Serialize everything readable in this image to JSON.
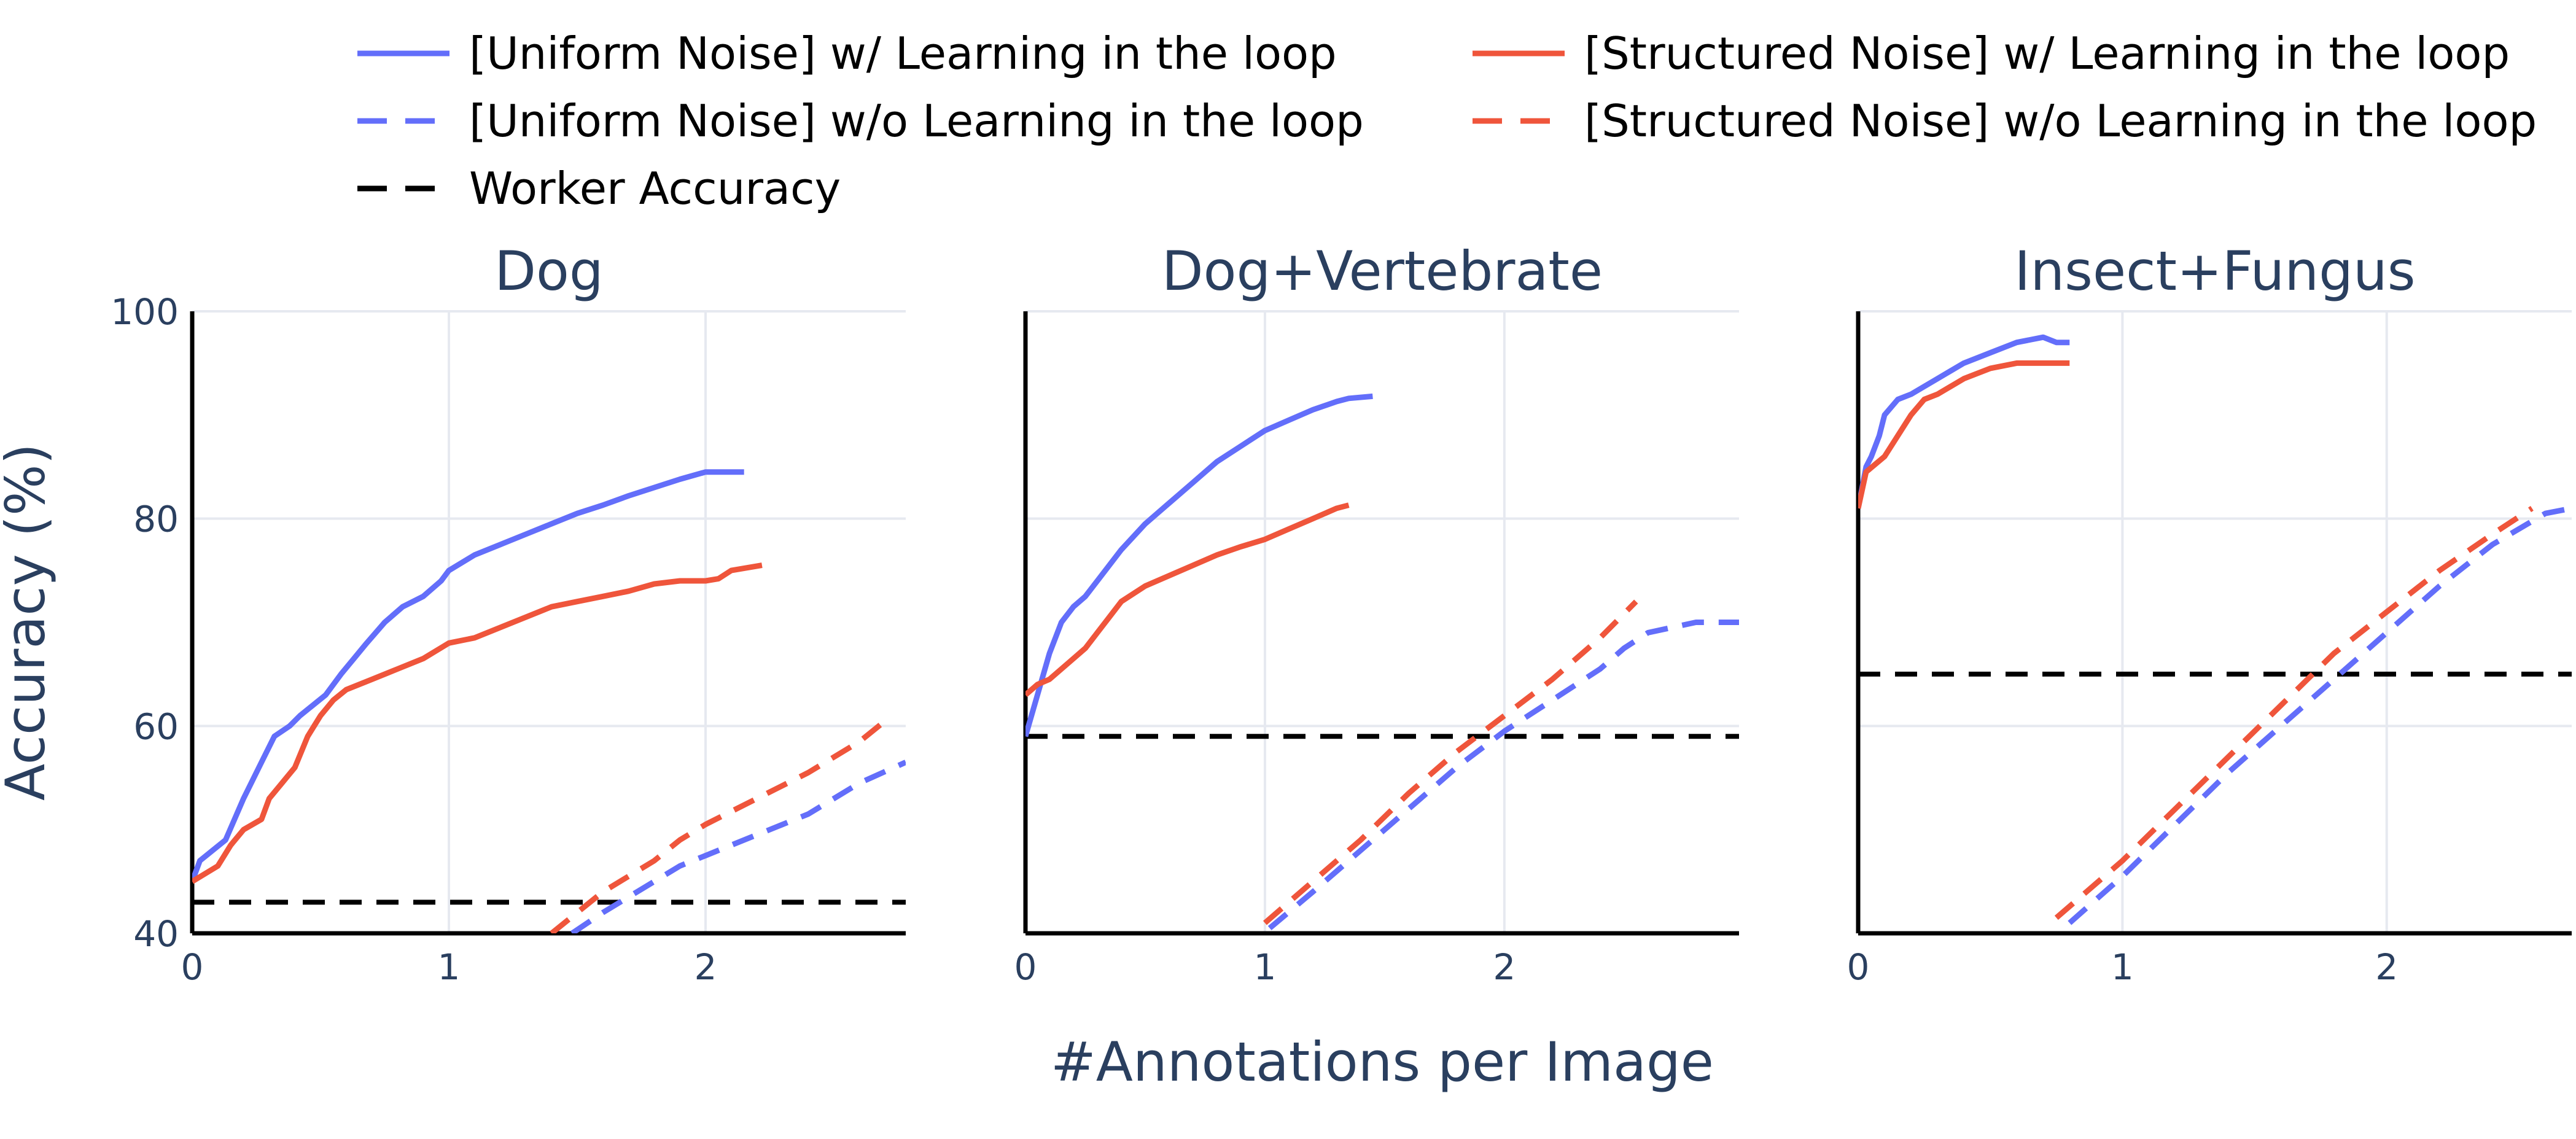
{
  "chart_data": {
    "type": "line",
    "xlabel": "#Annotations per Image",
    "ylabel": "Accuracy (%)",
    "ylim": [
      40,
      100
    ],
    "yticks": [
      40,
      60,
      80,
      100
    ],
    "grid": true,
    "legend": {
      "placement": "top",
      "entries": [
        {
          "label": "[Uniform Noise] w/ Learning in the loop",
          "color": "#636efa",
          "dash": "solid"
        },
        {
          "label": "[Uniform Noise] w/o Learning in the loop",
          "color": "#636efa",
          "dash": "dash"
        },
        {
          "label": "Worker Accuracy",
          "color": "#000000",
          "dash": "dash"
        },
        {
          "label": "[Structured Noise] w/ Learning in the loop",
          "color": "#ef553b",
          "dash": "solid"
        },
        {
          "label": "[Structured Noise] w/o Learning in the loop",
          "color": "#ef553b",
          "dash": "dash"
        }
      ]
    },
    "panels": [
      {
        "title": "Dog",
        "xlim": [
          0,
          2.78
        ],
        "xticks": [
          0,
          1,
          2
        ],
        "worker_accuracy": 43,
        "series": [
          {
            "legend": 0,
            "color": "#636efa",
            "dash": "solid",
            "x": [
              0,
              0.03,
              0.08,
              0.13,
              0.2,
              0.24,
              0.28,
              0.32,
              0.38,
              0.42,
              0.47,
              0.52,
              0.58,
              0.63,
              0.68,
              0.75,
              0.82,
              0.9,
              0.97,
              1.0,
              1.1,
              1.2,
              1.3,
              1.4,
              1.5,
              1.6,
              1.7,
              1.8,
              1.9,
              2.0,
              2.05,
              2.15
            ],
            "y": [
              45,
              47,
              48,
              49,
              53,
              55,
              57,
              59,
              60,
              61,
              62,
              63,
              65,
              66.5,
              68,
              70,
              71.5,
              72.5,
              74,
              75,
              76.5,
              77.5,
              78.5,
              79.5,
              80.5,
              81.3,
              82.2,
              83,
              83.8,
              84.5,
              84.5,
              84.5
            ]
          },
          {
            "legend": 3,
            "color": "#ef553b",
            "dash": "solid",
            "x": [
              0,
              0.1,
              0.15,
              0.2,
              0.27,
              0.3,
              0.35,
              0.4,
              0.45,
              0.5,
              0.55,
              0.6,
              0.7,
              0.8,
              0.9,
              1.0,
              1.1,
              1.2,
              1.3,
              1.4,
              1.5,
              1.6,
              1.7,
              1.8,
              1.9,
              2.0,
              2.05,
              2.1,
              2.22
            ],
            "y": [
              45,
              46.5,
              48.5,
              50,
              51,
              53,
              54.5,
              56,
              59,
              61,
              62.5,
              63.5,
              64.5,
              65.5,
              66.5,
              68,
              68.5,
              69.5,
              70.5,
              71.5,
              72,
              72.5,
              73,
              73.7,
              74,
              74,
              74.2,
              75,
              75.5
            ]
          },
          {
            "legend": 1,
            "color": "#636efa",
            "dash": "dash",
            "x": [
              1.48,
              1.6,
              1.7,
              1.8,
              1.9,
              2.0,
              2.2,
              2.4,
              2.6,
              2.78
            ],
            "y": [
              40,
              42,
              43.5,
              45,
              46.5,
              47.5,
              49.5,
              51.5,
              54.5,
              56.5
            ]
          },
          {
            "legend": 4,
            "color": "#ef553b",
            "dash": "dash",
            "x": [
              1.4,
              1.5,
              1.6,
              1.7,
              1.8,
              1.9,
              2.0,
              2.2,
              2.4,
              2.6,
              2.7
            ],
            "y": [
              40,
              42,
              44,
              45.5,
              47,
              49,
              50.5,
              53,
              55.5,
              58.5,
              60.5
            ]
          }
        ]
      },
      {
        "title": "Dog+Vertebrate",
        "xlim": [
          0,
          2.98
        ],
        "xticks": [
          0,
          1,
          2
        ],
        "worker_accuracy": 59,
        "series": [
          {
            "legend": 0,
            "color": "#636efa",
            "dash": "solid",
            "x": [
              0,
              0.05,
              0.1,
              0.15,
              0.2,
              0.25,
              0.3,
              0.35,
              0.4,
              0.5,
              0.6,
              0.7,
              0.8,
              0.9,
              1.0,
              1.1,
              1.2,
              1.3,
              1.35,
              1.45
            ],
            "y": [
              59,
              63,
              67,
              70,
              71.5,
              72.5,
              74,
              75.5,
              77,
              79.5,
              81.5,
              83.5,
              85.5,
              87,
              88.5,
              89.5,
              90.5,
              91.3,
              91.6,
              91.8
            ]
          },
          {
            "legend": 3,
            "color": "#ef553b",
            "dash": "solid",
            "x": [
              0,
              0.05,
              0.1,
              0.15,
              0.2,
              0.25,
              0.3,
              0.35,
              0.4,
              0.5,
              0.6,
              0.7,
              0.8,
              0.9,
              1.0,
              1.1,
              1.2,
              1.3,
              1.35
            ],
            "y": [
              63,
              64,
              64.5,
              65.5,
              66.5,
              67.5,
              69,
              70.5,
              72,
              73.5,
              74.5,
              75.5,
              76.5,
              77.3,
              78,
              79,
              80,
              81,
              81.3
            ]
          },
          {
            "legend": 1,
            "color": "#636efa",
            "dash": "dash",
            "x": [
              1.02,
              1.2,
              1.4,
              1.6,
              1.8,
              2.0,
              2.2,
              2.4,
              2.5,
              2.6,
              2.8,
              2.98
            ],
            "y": [
              40.5,
              44,
              48,
              52,
              56,
              59.5,
              62.5,
              65.5,
              67.5,
              69,
              70,
              70
            ]
          },
          {
            "legend": 4,
            "color": "#ef553b",
            "dash": "dash",
            "x": [
              1.0,
              1.2,
              1.4,
              1.6,
              1.8,
              2.0,
              2.2,
              2.4,
              2.55
            ],
            "y": [
              41,
              45,
              49,
              53.5,
              57.5,
              61,
              64.5,
              68.5,
              72
            ]
          }
        ]
      },
      {
        "title": "Insect+Fungus",
        "xlim": [
          0,
          2.7
        ],
        "xticks": [
          0,
          1,
          2
        ],
        "worker_accuracy": 65,
        "series": [
          {
            "legend": 0,
            "color": "#636efa",
            "dash": "solid",
            "x": [
              0,
              0.03,
              0.05,
              0.08,
              0.1,
              0.15,
              0.2,
              0.3,
              0.4,
              0.5,
              0.6,
              0.7,
              0.75,
              0.8
            ],
            "y": [
              81,
              85,
              86,
              88,
              90,
              91.5,
              92,
              93.5,
              95,
              96,
              97,
              97.5,
              97,
              97
            ]
          },
          {
            "legend": 3,
            "color": "#ef553b",
            "dash": "solid",
            "x": [
              0,
              0.03,
              0.1,
              0.15,
              0.2,
              0.25,
              0.3,
              0.4,
              0.5,
              0.6,
              0.7,
              0.8
            ],
            "y": [
              81,
              84.5,
              86,
              88,
              90,
              91.5,
              92,
              93.5,
              94.5,
              95,
              95,
              95
            ]
          },
          {
            "legend": 1,
            "color": "#636efa",
            "dash": "dash",
            "x": [
              0.8,
              1.0,
              1.2,
              1.4,
              1.6,
              1.8,
              2.0,
              2.2,
              2.4,
              2.6,
              2.7
            ],
            "y": [
              41,
              45.5,
              50.5,
              55.5,
              60,
              64.5,
              69,
              73.5,
              77.5,
              80.5,
              81
            ]
          },
          {
            "legend": 4,
            "color": "#ef553b",
            "dash": "dash",
            "x": [
              0.75,
              1.0,
              1.2,
              1.4,
              1.6,
              1.8,
              2.0,
              2.2,
              2.4,
              2.55
            ],
            "y": [
              41.5,
              47,
              52,
              57,
              62,
              67,
              71,
              75,
              78.5,
              81
            ]
          }
        ]
      }
    ]
  }
}
